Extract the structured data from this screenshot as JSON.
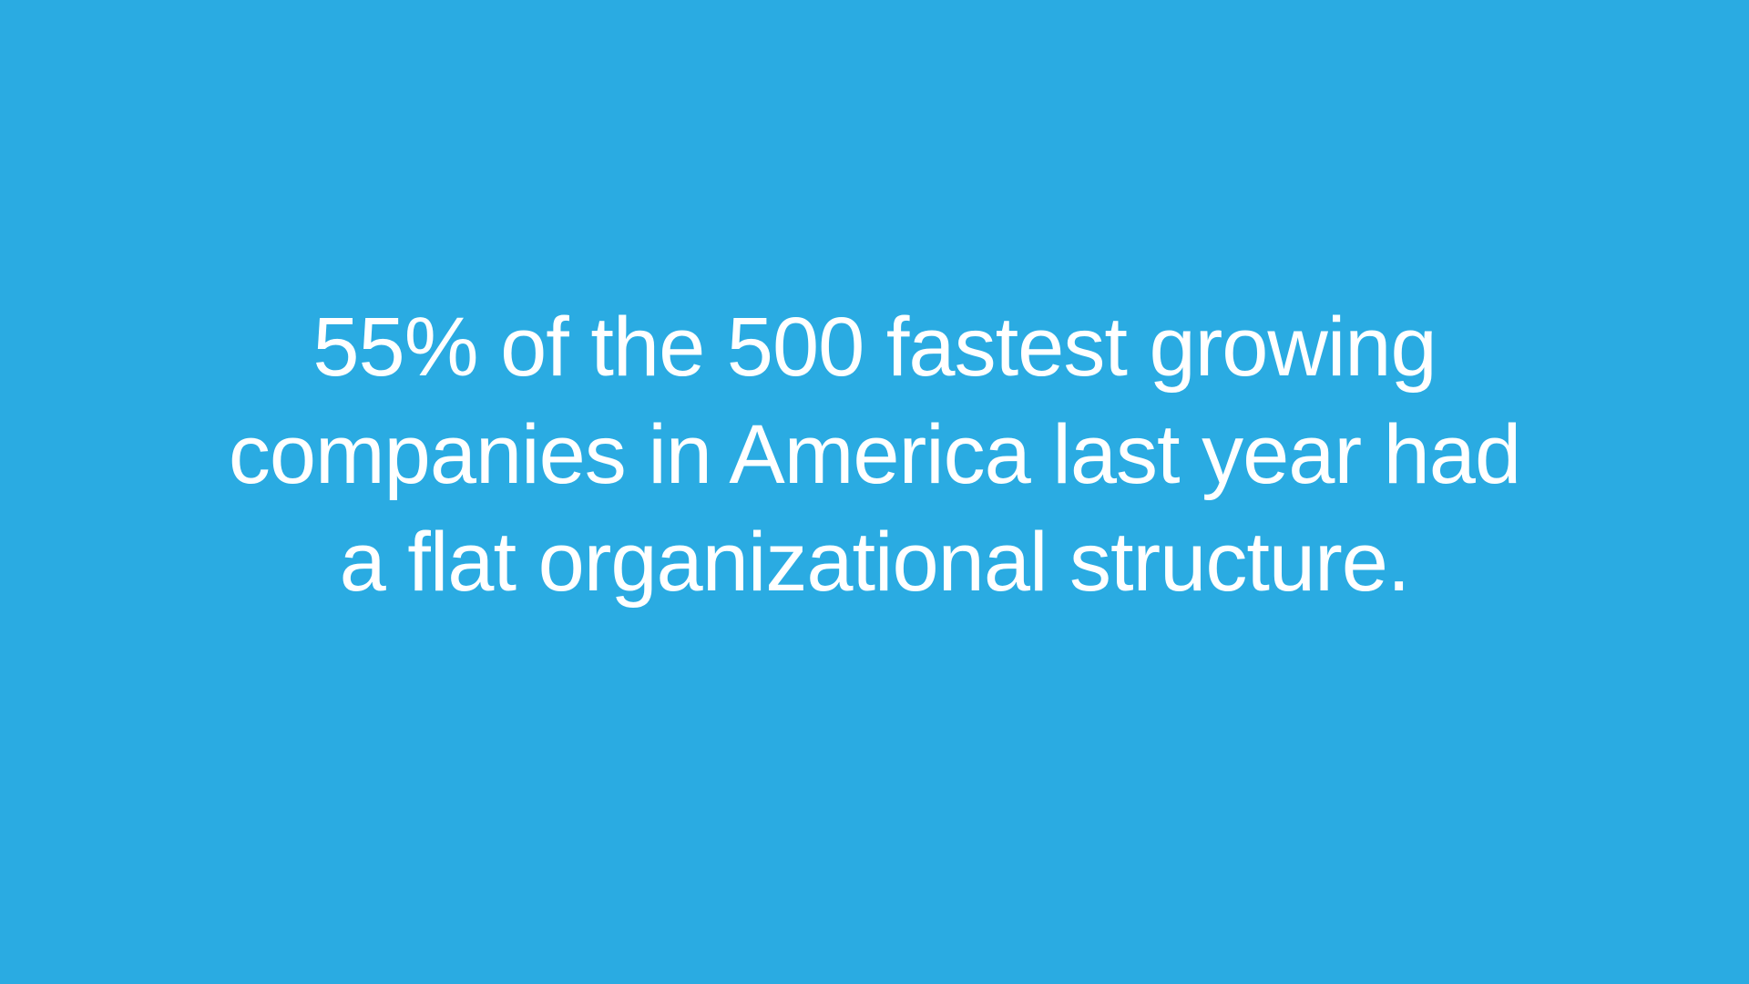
{
  "slide": {
    "background_color": "#2aabe2",
    "text_color": "#ffffff",
    "statement_lines": [
      "55% of the 500 fastest growing",
      "companies in America last year had",
      "a flat organizational structure."
    ]
  }
}
